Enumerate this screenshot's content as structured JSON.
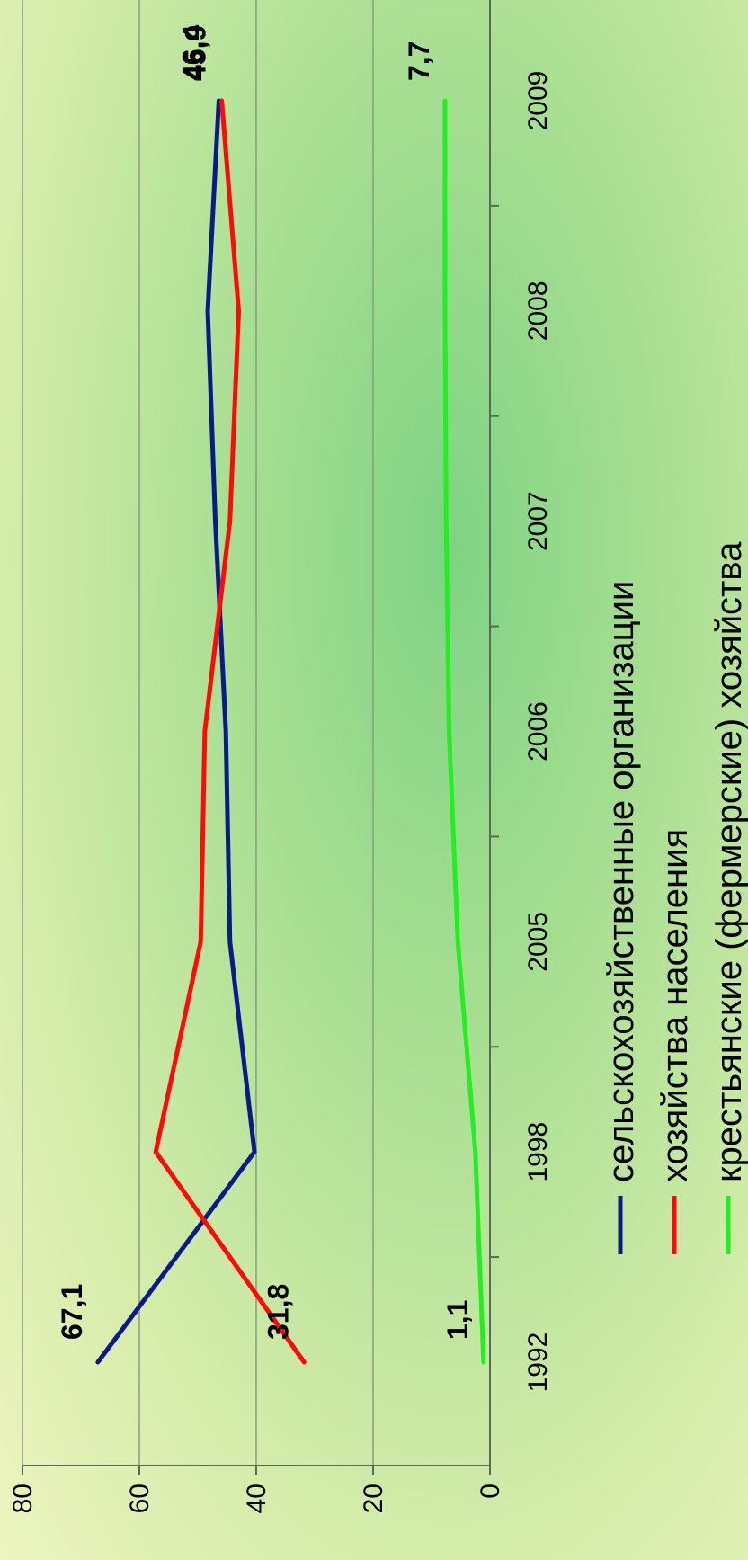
{
  "chart_data": {
    "type": "line",
    "orientation": "rotated-90-cw",
    "title": "",
    "xlabel": "",
    "ylabel": "",
    "categories": [
      "1992",
      "1998",
      "2005",
      "2006",
      "2007",
      "2008",
      "2009"
    ],
    "ylim": [
      0,
      80
    ],
    "yticks": [
      "0",
      "20",
      "40",
      "60",
      "80"
    ],
    "grid": true,
    "legend_position": "bottom",
    "series": [
      {
        "name": "сельскохозяйственные организации",
        "color": "#0a1a8c",
        "values": [
          67.1,
          40.3,
          44.5,
          45.2,
          47.0,
          48.3,
          46.4
        ],
        "labels": {
          "first": "67,1",
          "last": "46,4"
        }
      },
      {
        "name": "хозяйства населения",
        "color": "#ff0a0a",
        "values": [
          31.8,
          57.2,
          49.5,
          48.8,
          44.5,
          43.0,
          45.9
        ],
        "labels": {
          "first": "31,8",
          "last": "45,9"
        }
      },
      {
        "name": "крестьянские (фермерские) хозяйства",
        "color": "#22ee22",
        "values": [
          1.1,
          2.5,
          5.5,
          7.0,
          7.5,
          7.7,
          7.7
        ],
        "labels": {
          "first": "1,1",
          "last": "7,7"
        }
      }
    ]
  }
}
